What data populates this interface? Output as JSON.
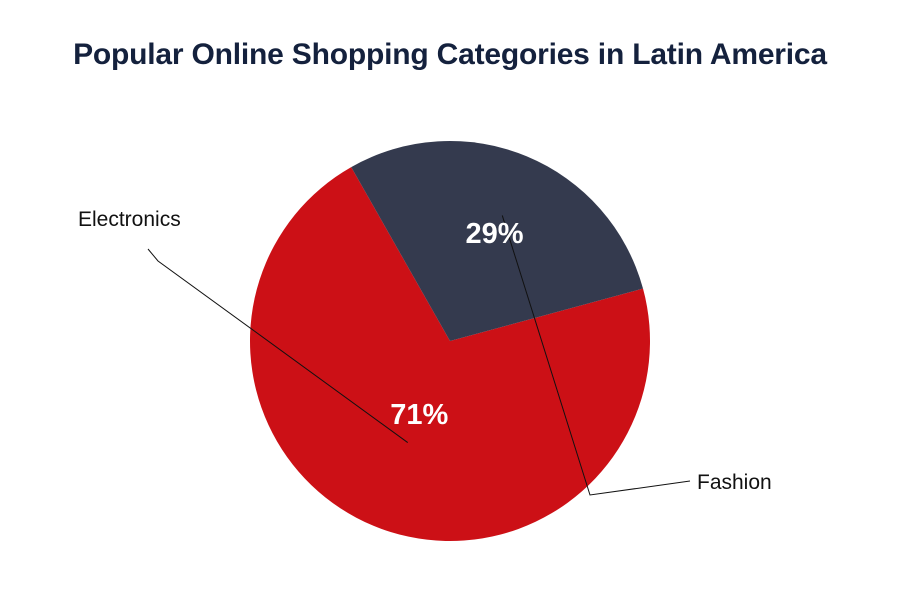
{
  "chart_data": {
    "type": "pie",
    "title": "Popular Online Shopping Categories in Latin America",
    "slices": [
      {
        "label": "Electronics",
        "value": 71,
        "display": "71%",
        "color": "#cc1016"
      },
      {
        "label": "Fashion",
        "value": 29,
        "display": "29%",
        "color": "#343a4e"
      }
    ],
    "legend": "none",
    "label_style": "outside-with-leader-lines"
  }
}
